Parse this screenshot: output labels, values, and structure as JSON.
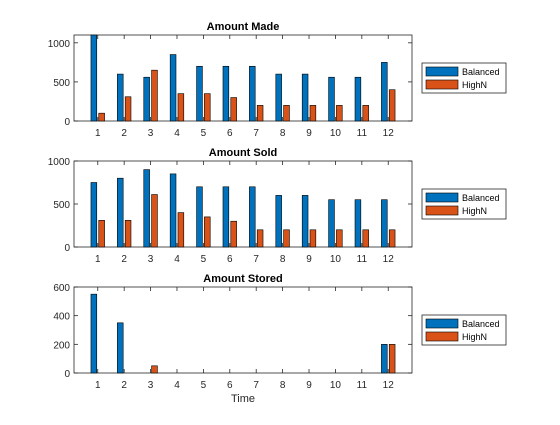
{
  "colors": {
    "balanced": "#0072BD",
    "highn": "#D95319",
    "axis": "#262626"
  },
  "chart_data": [
    {
      "type": "bar",
      "title": "Amount Made",
      "xlabel": "",
      "ylabel": "",
      "categories": [
        "1",
        "2",
        "3",
        "4",
        "5",
        "6",
        "7",
        "8",
        "9",
        "10",
        "11",
        "12"
      ],
      "ylim": [
        0,
        1100
      ],
      "yticks": [
        0,
        500,
        1000
      ],
      "series": [
        {
          "name": "Balanced",
          "values": [
            1100,
            600,
            560,
            850,
            700,
            700,
            700,
            600,
            600,
            560,
            560,
            750
          ]
        },
        {
          "name": "HighN",
          "values": [
            100,
            310,
            650,
            350,
            350,
            300,
            200,
            200,
            200,
            200,
            200,
            400
          ]
        }
      ],
      "legend_position": "right"
    },
    {
      "type": "bar",
      "title": "Amount Sold",
      "xlabel": "",
      "ylabel": "",
      "categories": [
        "1",
        "2",
        "3",
        "4",
        "5",
        "6",
        "7",
        "8",
        "9",
        "10",
        "11",
        "12"
      ],
      "ylim": [
        0,
        1000
      ],
      "yticks": [
        0,
        500,
        1000
      ],
      "series": [
        {
          "name": "Balanced",
          "values": [
            750,
            800,
            900,
            850,
            700,
            700,
            700,
            600,
            600,
            550,
            550,
            550
          ]
        },
        {
          "name": "HighN",
          "values": [
            310,
            310,
            610,
            400,
            350,
            300,
            200,
            200,
            200,
            200,
            200,
            200
          ]
        }
      ],
      "legend_position": "right"
    },
    {
      "type": "bar",
      "title": "Amount Stored",
      "xlabel": "Time",
      "ylabel": "",
      "categories": [
        "1",
        "2",
        "3",
        "4",
        "5",
        "6",
        "7",
        "8",
        "9",
        "10",
        "11",
        "12"
      ],
      "ylim": [
        0,
        600
      ],
      "yticks": [
        0,
        200,
        400,
        600
      ],
      "series": [
        {
          "name": "Balanced",
          "values": [
            550,
            350,
            0,
            0,
            0,
            0,
            0,
            0,
            0,
            0,
            0,
            200
          ]
        },
        {
          "name": "HighN",
          "values": [
            0,
            0,
            50,
            0,
            0,
            0,
            0,
            0,
            0,
            0,
            0,
            200
          ]
        }
      ],
      "legend_position": "right"
    }
  ]
}
